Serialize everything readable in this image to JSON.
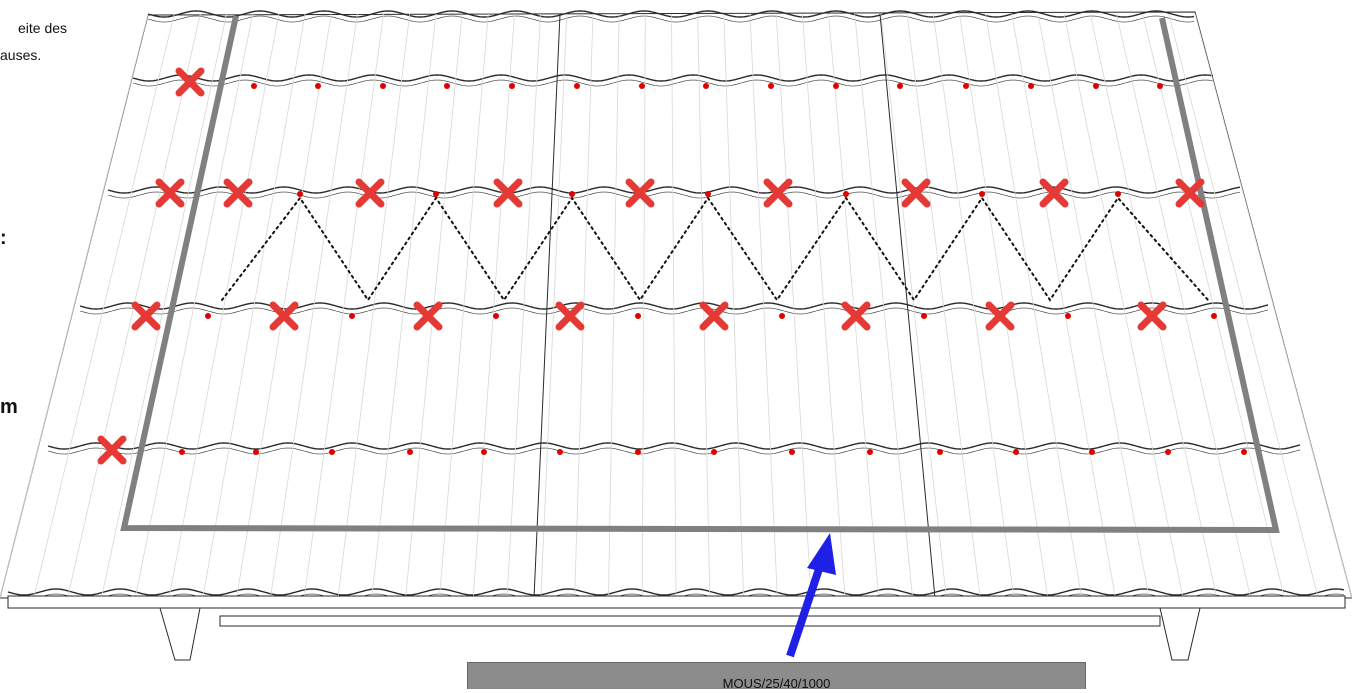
{
  "text_fragments": [
    "eite des",
    "auses.",
    ":",
    "m"
  ],
  "profile_label": "MOUS/25/40/1000",
  "colors": {
    "tile_stroke": "#2a2a2a",
    "frame": "#808080",
    "cross": "#e53935",
    "screw_dot": "#e00000",
    "arrow": "#1f1fe6",
    "profile_bar": "#8c8c8c"
  },
  "icons": [
    "cross-icon",
    "screw-dot-icon",
    "arrow-icon"
  ],
  "counts": {
    "crosses": 22,
    "screw_dots": 56,
    "zigzag_peaks": 7
  }
}
